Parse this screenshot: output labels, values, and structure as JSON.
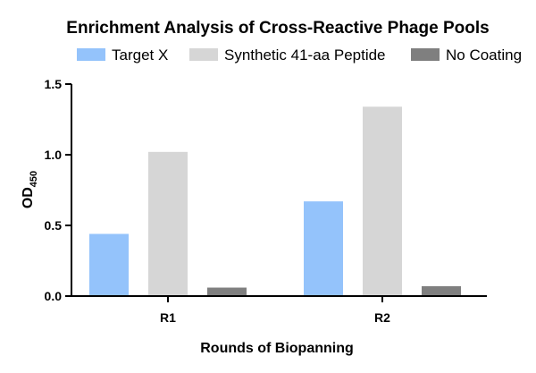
{
  "chart_data": {
    "type": "bar",
    "title": "Enrichment Analysis of Cross-Reactive Phage Pools",
    "xlabel": "Rounds of Biopanning",
    "ylabel": "OD",
    "ylabel_subscript": "450",
    "categories": [
      "R1",
      "R2"
    ],
    "ylim": [
      0,
      1.5
    ],
    "yticks": [
      "0.0",
      "0.5",
      "1.0",
      "1.5"
    ],
    "legend_position": "top",
    "grid": false,
    "series": [
      {
        "name": "Target X",
        "color": "#94c3fb",
        "values": [
          0.44,
          0.67
        ]
      },
      {
        "name": "Synthetic 41-aa Peptide",
        "color": "#d6d6d6",
        "values": [
          1.02,
          1.34
        ]
      },
      {
        "name": "No Coating",
        "color": "#7f7f7f",
        "values": [
          0.06,
          0.07
        ]
      }
    ]
  }
}
